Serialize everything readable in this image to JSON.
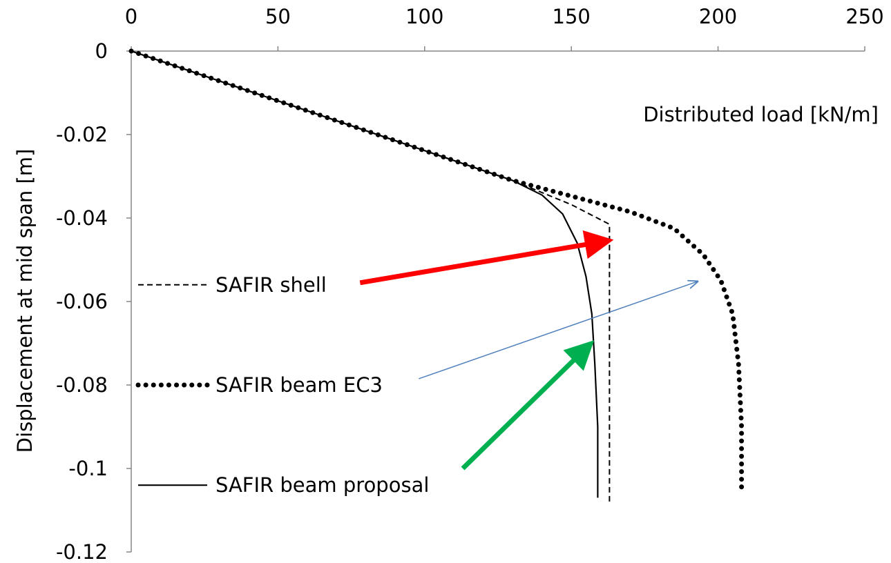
{
  "chart_data": {
    "type": "line",
    "xlabel": "Distributed load [kN/m]",
    "ylabel": "Displacement at mid span [m]",
    "xlim": [
      0,
      250
    ],
    "ylim": [
      -0.12,
      0
    ],
    "x_ticks": [
      "0",
      "50",
      "100",
      "150",
      "200",
      "250"
    ],
    "y_ticks": [
      "0",
      "-0.02",
      "-0.04",
      "-0.06",
      "-0.08",
      "-0.1",
      "-0.12"
    ],
    "x_axis_position": "top",
    "grid": false,
    "legend_position": "left",
    "series": [
      {
        "name": "SAFIR shell",
        "style": "dashed",
        "color": "#000000",
        "points": [
          [
            0,
            0
          ],
          [
            130,
            -0.031
          ],
          [
            150,
            -0.0368
          ],
          [
            163,
            -0.0415
          ],
          [
            163,
            -0.108
          ]
        ]
      },
      {
        "name": "SAFIR beam EC3",
        "style": "dotted",
        "color": "#000000",
        "points": [
          [
            0,
            0
          ],
          [
            130,
            -0.031
          ],
          [
            170,
            -0.0385
          ],
          [
            185,
            -0.0425
          ],
          [
            195,
            -0.0488
          ],
          [
            201,
            -0.055
          ],
          [
            205,
            -0.063
          ],
          [
            207,
            -0.075
          ],
          [
            208,
            -0.09
          ],
          [
            208,
            -0.105
          ]
        ]
      },
      {
        "name": "SAFIR beam proposal",
        "style": "solid",
        "color": "#000000",
        "points": [
          [
            0,
            0
          ],
          [
            130,
            -0.031
          ],
          [
            140,
            -0.0345
          ],
          [
            147,
            -0.039
          ],
          [
            152,
            -0.046
          ],
          [
            155,
            -0.054
          ],
          [
            157,
            -0.063
          ],
          [
            158,
            -0.075
          ],
          [
            159,
            -0.09
          ],
          [
            159,
            -0.107
          ]
        ]
      }
    ],
    "annotations": [
      {
        "label": "red-arrow",
        "color": "#ff0000",
        "from": [
          78,
          -0.0555
        ],
        "to": [
          162,
          -0.0455
        ]
      },
      {
        "label": "blue-arrow",
        "color": "#4f81bd",
        "from": [
          98,
          -0.0785
        ],
        "to": [
          193,
          -0.0552
        ]
      },
      {
        "label": "green-arrow",
        "color": "#00b050",
        "from": [
          113,
          -0.1
        ],
        "to": [
          156,
          -0.0705
        ]
      }
    ]
  }
}
